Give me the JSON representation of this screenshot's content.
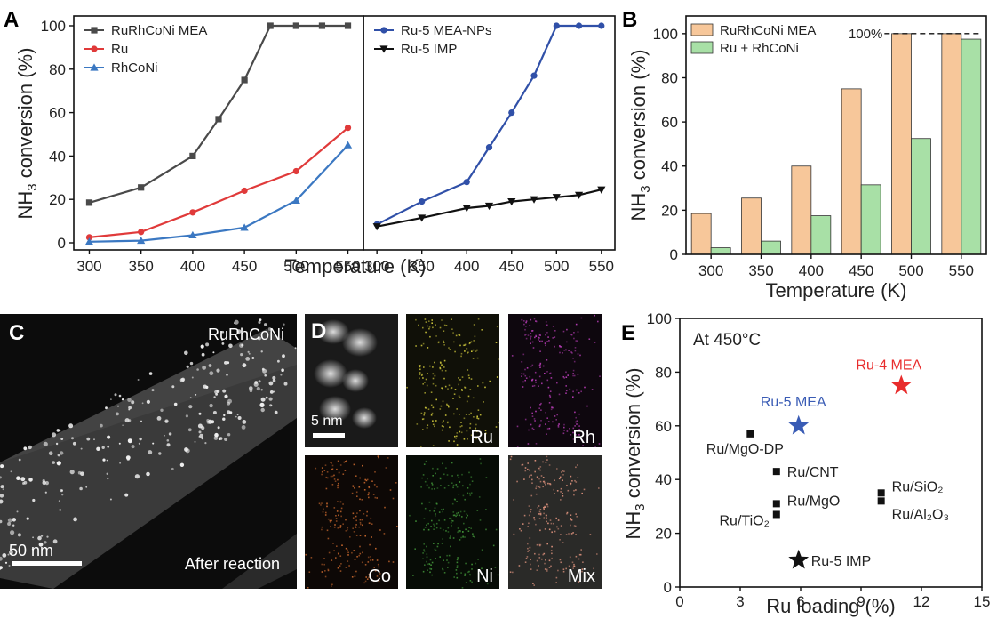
{
  "panels": {
    "a": "A",
    "b": "B",
    "c": "C",
    "d": "D",
    "e": "E"
  },
  "chart_data": [
    {
      "id": "A-left",
      "type": "line",
      "x": [
        300,
        350,
        400,
        425,
        450,
        475,
        500,
        525,
        550
      ],
      "xlabel": "Temperature (K)",
      "ylabel": "NH3 conversion (%)",
      "ylim": [
        0,
        100
      ],
      "xlim": [
        285,
        565
      ],
      "xticks": [
        "300",
        "350",
        "400",
        "450",
        "500",
        "550"
      ],
      "yticks": [
        "0",
        "20",
        "40",
        "60",
        "80",
        "100"
      ],
      "series": [
        {
          "name": "RuRhCoNi MEA",
          "color": "#4a4a4a",
          "marker": "square",
          "x": [
            300,
            350,
            400,
            425,
            450,
            475,
            500,
            525,
            550
          ],
          "values": [
            18.5,
            25.5,
            40,
            57,
            75,
            100,
            100,
            100,
            100
          ]
        },
        {
          "name": "Ru",
          "color": "#e03a3a",
          "marker": "circle",
          "x": [
            300,
            350,
            400,
            450,
            500,
            550
          ],
          "values": [
            2.5,
            5,
            14,
            24,
            33,
            53
          ]
        },
        {
          "name": "RhCoNi",
          "color": "#3b78c2",
          "marker": "triangle",
          "x": [
            300,
            350,
            400,
            450,
            500,
            550
          ],
          "values": [
            0.5,
            1,
            3.5,
            7,
            19.5,
            45
          ]
        }
      ]
    },
    {
      "id": "A-right",
      "type": "line",
      "xlim": [
        285,
        565
      ],
      "ylim": [
        0,
        100
      ],
      "xticks": [
        "300",
        "350",
        "400",
        "450",
        "500",
        "550"
      ],
      "series": [
        {
          "name": "Ru-5 MEA-NPs",
          "color": "#3050a8",
          "marker": "circle",
          "x": [
            300,
            350,
            400,
            425,
            450,
            475,
            500,
            525,
            550
          ],
          "values": [
            8.5,
            19,
            28,
            44,
            60,
            77,
            100,
            100,
            100
          ]
        },
        {
          "name": "Ru-5 IMP",
          "color": "#111111",
          "marker": "triangle-down",
          "x": [
            300,
            350,
            400,
            425,
            450,
            475,
            500,
            525,
            550
          ],
          "values": [
            7.5,
            11.5,
            16,
            17,
            19,
            20,
            21,
            22,
            24.5
          ]
        }
      ]
    },
    {
      "id": "B",
      "type": "bar",
      "categories": [
        "300",
        "350",
        "400",
        "450",
        "500",
        "550"
      ],
      "xlabel": "Temperature (K)",
      "ylabel": "NH3 conversion (%)",
      "ylim": [
        0,
        108
      ],
      "yticks": [
        "0",
        "20",
        "40",
        "60",
        "80",
        "100"
      ],
      "series": [
        {
          "name": "RuRhCoNi MEA",
          "color": "#f7c79a",
          "values": [
            18.5,
            25.5,
            40,
            75,
            100,
            100
          ]
        },
        {
          "name": "Ru + RhCoNi",
          "color": "#a8e0a6",
          "values": [
            3,
            6,
            17.5,
            31.5,
            52.5,
            97.5
          ]
        }
      ],
      "reference_line": {
        "value": 100,
        "label": "100%"
      }
    },
    {
      "id": "E",
      "type": "scatter",
      "title": "At 450°C",
      "xlabel": "Ru loading (%)",
      "ylabel": "NH3 conversion (%)",
      "xlim": [
        0,
        15
      ],
      "ylim": [
        0,
        100
      ],
      "xticks": [
        "0",
        "3",
        "6",
        "9",
        "12",
        "15"
      ],
      "yticks": [
        "0",
        "20",
        "40",
        "60",
        "80",
        "100"
      ],
      "points": [
        {
          "label": "Ru-4 MEA",
          "x": 11,
          "y": 75,
          "marker": "star",
          "color": "#e82c2c"
        },
        {
          "label": "Ru-5 MEA",
          "x": 5.9,
          "y": 60,
          "marker": "star",
          "color": "#3a5cb5"
        },
        {
          "label": "Ru-5 IMP",
          "x": 5.9,
          "y": 10,
          "marker": "star",
          "color": "#111111"
        },
        {
          "label": "Ru/MgO-DP",
          "x": 3.5,
          "y": 57,
          "marker": "square",
          "color": "#111111"
        },
        {
          "label": "Ru/CNT",
          "x": 4.8,
          "y": 43,
          "marker": "square",
          "color": "#111111"
        },
        {
          "label": "Ru/MgO",
          "x": 4.8,
          "y": 31,
          "marker": "square",
          "color": "#111111"
        },
        {
          "label": "Ru/TiO₂",
          "x": 4.8,
          "y": 27,
          "marker": "square",
          "color": "#111111"
        },
        {
          "label": "Ru/SiO₂",
          "x": 10,
          "y": 35,
          "marker": "square",
          "color": "#111111"
        },
        {
          "label": "Ru/Al₂O₃",
          "x": 10,
          "y": 32,
          "marker": "square",
          "color": "#111111"
        }
      ]
    }
  ],
  "images": {
    "c": {
      "title": "RuRhCoNi",
      "scale": "50 nm",
      "caption": "After reaction"
    },
    "d": {
      "scale": "5 nm",
      "tiles": [
        "Ru",
        "Rh",
        "Co",
        "Ni",
        "Mix"
      ]
    }
  }
}
